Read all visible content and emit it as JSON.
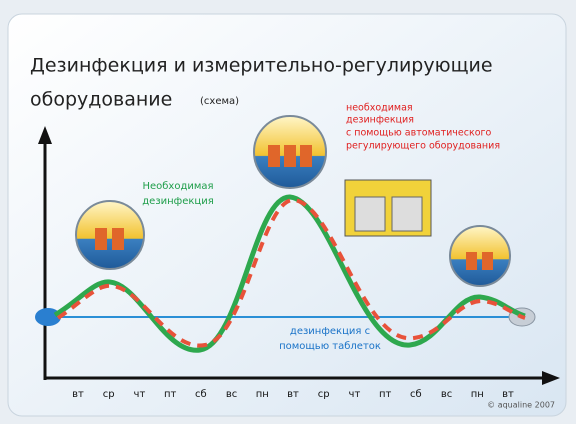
{
  "header": {
    "title_line1": "Дезинфекция и измерительно-регулирующие",
    "title_line2": "оборудование",
    "title_note": "(схема)"
  },
  "labels": {
    "red": [
      "необходимая",
      "дезинфекция",
      "с помощью автоматического",
      "регулирующего оборудования"
    ],
    "green": [
      "Необходимая",
      "дезинфекция"
    ],
    "blue": [
      "дезинфекция с",
      "помощью таблеток"
    ]
  },
  "days": [
    "вт",
    "ср",
    "чт",
    "пт",
    "сб",
    "вс",
    "пн",
    "вт",
    "ср",
    "чт",
    "пт",
    "сб",
    "вс",
    "пн",
    "вт"
  ],
  "footer": "© aqualine 2007"
}
